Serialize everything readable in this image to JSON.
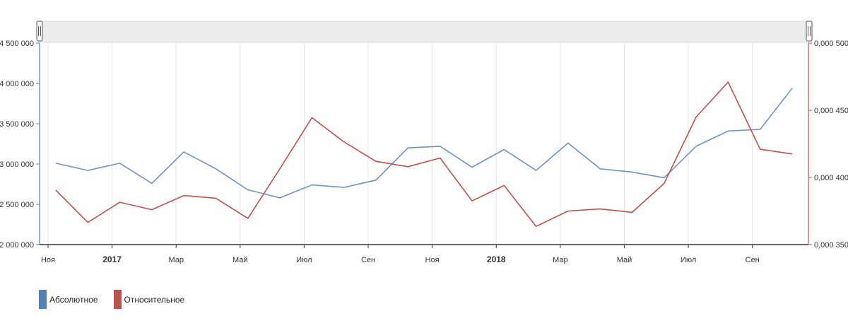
{
  "chart_data": {
    "type": "line",
    "x": [
      "2016-11",
      "2016-12",
      "2017-01",
      "2017-02",
      "2017-03",
      "2017-04",
      "2017-05",
      "2017-06",
      "2017-07",
      "2017-08",
      "2017-09",
      "2017-10",
      "2017-11",
      "2017-12",
      "2018-01",
      "2018-02",
      "2018-03",
      "2018-04",
      "2018-05",
      "2018-06",
      "2018-07",
      "2018-08",
      "2018-09",
      "2018-10"
    ],
    "x_tick_labels": [
      {
        "x": "2016-11",
        "label": "Ноя",
        "bold": false
      },
      {
        "x": "2017-01",
        "label": "2017",
        "bold": true
      },
      {
        "x": "2017-03",
        "label": "Мар",
        "bold": false
      },
      {
        "x": "2017-05",
        "label": "Май",
        "bold": false
      },
      {
        "x": "2017-07",
        "label": "Июл",
        "bold": false
      },
      {
        "x": "2017-09",
        "label": "Сен",
        "bold": false
      },
      {
        "x": "2017-11",
        "label": "Ноя",
        "bold": false
      },
      {
        "x": "2018-01",
        "label": "2018",
        "bold": true
      },
      {
        "x": "2018-03",
        "label": "Мар",
        "bold": false
      },
      {
        "x": "2018-05",
        "label": "Май",
        "bold": false
      },
      {
        "x": "2018-07",
        "label": "Июл",
        "bold": false
      },
      {
        "x": "2018-09",
        "label": "Сен",
        "bold": false
      }
    ],
    "y_left": {
      "range": [
        2000000,
        4500000
      ],
      "ticks": [
        2000000,
        2500000,
        3000000,
        3500000,
        4000000,
        4500000
      ],
      "tick_labels": [
        "2 000 000",
        "2 500 000",
        "3 000 000",
        "3 500 000",
        "4 000 000",
        "4 500 000"
      ],
      "color": "#4f81bd"
    },
    "y_right": {
      "range": [
        0.35,
        0.5
      ],
      "ticks": [
        0.35,
        0.4,
        0.45,
        0.5
      ],
      "tick_labels": [
        "0,000 350",
        "0,000 400",
        "0,000 450",
        "0,000 500"
      ],
      "color": "#c0504d"
    },
    "series": [
      {
        "name": "Абсолютное",
        "axis": "left",
        "color": "#6f93c1",
        "values": [
          3010000,
          2920000,
          3010000,
          2760000,
          3150000,
          2940000,
          2680000,
          2580000,
          2740000,
          2710000,
          2800000,
          3200000,
          3220000,
          2960000,
          3180000,
          2920000,
          3260000,
          2940000,
          2900000,
          2830000,
          3220000,
          3410000,
          3430000,
          3940000
        ]
      },
      {
        "name": "Относительное",
        "axis": "right",
        "color": "#c0504d",
        "values": [
          0.3905,
          0.3665,
          0.3815,
          0.376,
          0.3865,
          0.3845,
          0.3695,
          0.4065,
          0.4445,
          0.4265,
          0.412,
          0.408,
          0.4145,
          0.3825,
          0.394,
          0.3635,
          0.375,
          0.3765,
          0.374,
          0.3955,
          0.445,
          0.471,
          0.421,
          0.4175
        ]
      }
    ],
    "grid": "vertical",
    "legend_position": "bottom-left"
  }
}
